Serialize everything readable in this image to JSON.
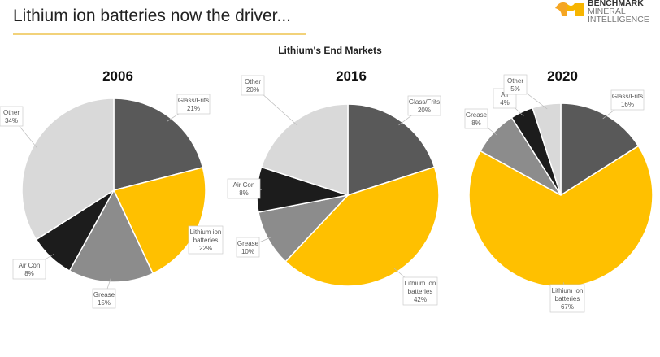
{
  "title": "Lithium ion batteries now the driver...",
  "logo": {
    "line1": "BENCHMARK",
    "line2": "MINERAL",
    "line3": "INTELLIGENCE"
  },
  "chart_data": {
    "type": "pie",
    "title": "Lithium's End Markets",
    "colors": {
      "Glass/Frits": "#595959",
      "Lithium ion batteries": "#FFC000",
      "Grease": "#8C8C8C",
      "Air Con": "#1C1C1C",
      "Other": "#D9D9D9"
    },
    "charts": [
      {
        "year": "2006",
        "slices": [
          {
            "name": "Glass/Frits",
            "label": [
              "Glass/Frits",
              "21%"
            ],
            "value": 21
          },
          {
            "name": "Lithium ion batteries",
            "label": [
              "Lithium ion",
              "batteries",
              "22%"
            ],
            "value": 22
          },
          {
            "name": "Grease",
            "label": [
              "Grease",
              "15%"
            ],
            "value": 15
          },
          {
            "name": "Air Con",
            "label": [
              "Air Con",
              "8%"
            ],
            "value": 8
          },
          {
            "name": "Other",
            "label": [
              "Other",
              "34%"
            ],
            "value": 34
          }
        ]
      },
      {
        "year": "2016",
        "slices": [
          {
            "name": "Glass/Frits",
            "label": [
              "Glass/Frits",
              "20%"
            ],
            "value": 20
          },
          {
            "name": "Lithium ion batteries",
            "label": [
              "Lithium ion",
              "batteries",
              "42%"
            ],
            "value": 42
          },
          {
            "name": "Grease",
            "label": [
              "Grease",
              "10%"
            ],
            "value": 10
          },
          {
            "name": "Air Con",
            "label": [
              "Air Con",
              "8%"
            ],
            "value": 8
          },
          {
            "name": "Other",
            "label": [
              "Other",
              "20%"
            ],
            "value": 20
          }
        ]
      },
      {
        "year": "2020",
        "slices": [
          {
            "name": "Glass/Frits",
            "label": [
              "Glass/Frits",
              "16%"
            ],
            "value": 16
          },
          {
            "name": "Lithium ion batteries",
            "label": [
              "Lithium ion",
              "batteries",
              "67%"
            ],
            "value": 67
          },
          {
            "name": "Grease",
            "label": [
              "Grease",
              "8%"
            ],
            "value": 8
          },
          {
            "name": "Air Con",
            "label": [
              "Air",
              "4%"
            ],
            "value": 4
          },
          {
            "name": "Other",
            "label": [
              "Other",
              "5%"
            ],
            "value": 5
          }
        ]
      }
    ]
  }
}
